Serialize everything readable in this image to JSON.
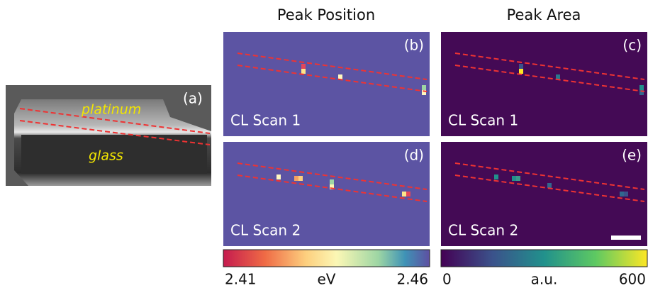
{
  "columns": [
    "Peak Position",
    "Peak Area"
  ],
  "panel_a": {
    "label": "(a)",
    "annotations": [
      "platinum",
      "glass"
    ]
  },
  "panels": [
    {
      "label": "(b)",
      "scan": "CL Scan 1"
    },
    {
      "label": "(c)",
      "scan": "CL Scan 1"
    },
    {
      "label": "(d)",
      "scan": "CL Scan 2"
    },
    {
      "label": "(e)",
      "scan": "CL Scan 2"
    }
  ],
  "colorbars": [
    {
      "min": 2.41,
      "max": 2.46,
      "unit": "eV"
    },
    {
      "min": 0,
      "max": 600,
      "unit": "a.u."
    }
  ]
}
